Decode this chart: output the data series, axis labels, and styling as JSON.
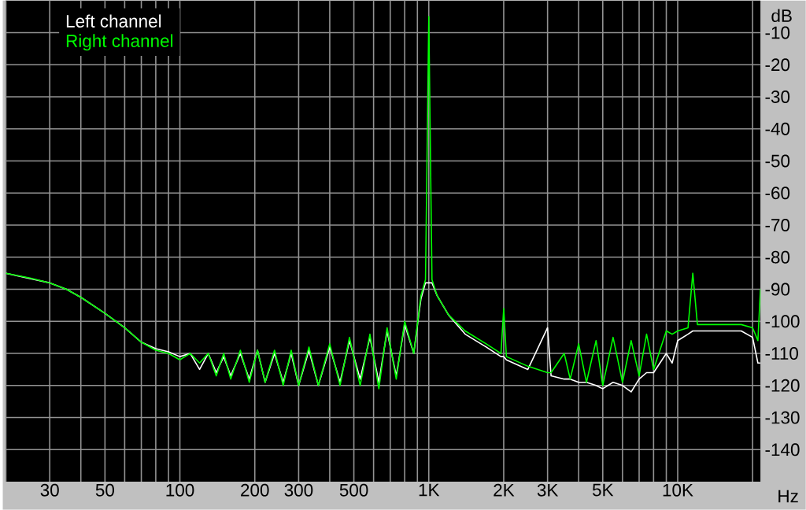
{
  "chart_data": {
    "type": "line",
    "xlabel": "Hz",
    "ylabel": "dB",
    "log": "x",
    "grid": true,
    "legend": "top left",
    "line_style": "solid",
    "xlim": [
      20,
      21500
    ],
    "ylim": [
      -150,
      0
    ],
    "xticks": [
      {
        "value": 20,
        "label": null
      },
      30,
      {
        "value": 40,
        "label": null
      },
      50,
      {
        "value": 60,
        "label": null
      },
      {
        "value": 70,
        "label": null
      },
      {
        "value": 80,
        "label": null
      },
      {
        "value": 90,
        "label": null
      },
      100,
      200,
      300,
      {
        "value": 400,
        "label": null
      },
      500,
      {
        "value": 600,
        "label": null
      },
      {
        "value": 700,
        "label": null
      },
      {
        "value": 800,
        "label": null
      },
      {
        "value": 900,
        "label": null
      },
      {
        "value": 1000,
        "label": "1K"
      },
      {
        "value": 2000,
        "label": "2K"
      },
      {
        "value": 3000,
        "label": "3K"
      },
      {
        "value": 4000,
        "label": null
      },
      {
        "value": 5000,
        "label": "5K"
      },
      {
        "value": 6000,
        "label": null
      },
      {
        "value": 7000,
        "label": null
      },
      {
        "value": 8000,
        "label": null
      },
      {
        "value": 9000,
        "label": null
      },
      {
        "value": 10000,
        "label": "10K"
      },
      {
        "value": 20000,
        "label": null
      }
    ],
    "yticks": [
      -10,
      -20,
      -30,
      -40,
      -50,
      -60,
      -70,
      -80,
      -90,
      -100,
      -110,
      -120,
      -130,
      -140
    ],
    "x": [
      20,
      25,
      30,
      35,
      40,
      50,
      60,
      70,
      80,
      90,
      100,
      110,
      120,
      130,
      140,
      150,
      160,
      175,
      190,
      205,
      220,
      240,
      260,
      280,
      300,
      330,
      360,
      400,
      440,
      480,
      530,
      580,
      630,
      680,
      740,
      800,
      870,
      930,
      970,
      1000,
      1030,
      1080,
      1200,
      1400,
      1700,
      1950,
      2000,
      2050,
      2500,
      3000,
      3100,
      3500,
      3700,
      4000,
      4300,
      4700,
      5000,
      5500,
      6000,
      6500,
      7000,
      7500,
      8000,
      9000,
      9500,
      10000,
      11000,
      11500,
      12000,
      15000,
      18000,
      20000,
      21000,
      21500
    ],
    "series": [
      {
        "name": "Left channel",
        "color": "#ffffff",
        "values": [
          -85,
          null,
          -88,
          -90,
          -92.5,
          -97.5,
          -102,
          -106.5,
          -108.5,
          -109.5,
          -111,
          -110,
          -115,
          -110,
          -116,
          -111,
          -117,
          -110,
          -118,
          -109,
          -119,
          -110,
          -119,
          -110,
          -120,
          -109,
          -120,
          -108,
          -119,
          -106,
          -118,
          -105,
          -119,
          -103,
          -117,
          -101,
          -110,
          -93,
          -88,
          null,
          -88,
          -92,
          -98,
          -104,
          -108,
          -111,
          -111,
          -112,
          -115,
          -102,
          -117,
          -118,
          -118,
          -119,
          -119,
          -120,
          -121,
          -119,
          -120,
          -122,
          -118,
          -116,
          -116,
          -110,
          -113,
          -106,
          -104,
          -103,
          -103,
          -103,
          -103,
          -105,
          -113,
          -113
        ]
      },
      {
        "name": "Right channel",
        "color": "#00ff00",
        "values": [
          -85,
          -86.5,
          -88,
          -90,
          -92.5,
          -97.5,
          -102,
          -106.5,
          -109,
          -110,
          -112,
          -110,
          -113,
          -110,
          -117,
          -110,
          -118,
          -109,
          -119,
          -109,
          -119,
          -109,
          -120,
          -109,
          -120,
          -108,
          -120,
          -107,
          -120,
          -105,
          -120,
          -104,
          -121,
          -102,
          -118,
          -100,
          -110,
          -92,
          -87,
          -5,
          -87,
          -92,
          -98,
          -103,
          -107,
          -110,
          -96,
          -111,
          -114,
          -116,
          -116,
          -110,
          -118,
          -107,
          -119,
          -106,
          -120,
          -105,
          -119,
          -106,
          -117,
          -104,
          -115,
          -103,
          -104,
          -103,
          -102,
          -85,
          -101,
          -101,
          -101,
          -102,
          -106,
          -90
        ]
      }
    ]
  }
}
